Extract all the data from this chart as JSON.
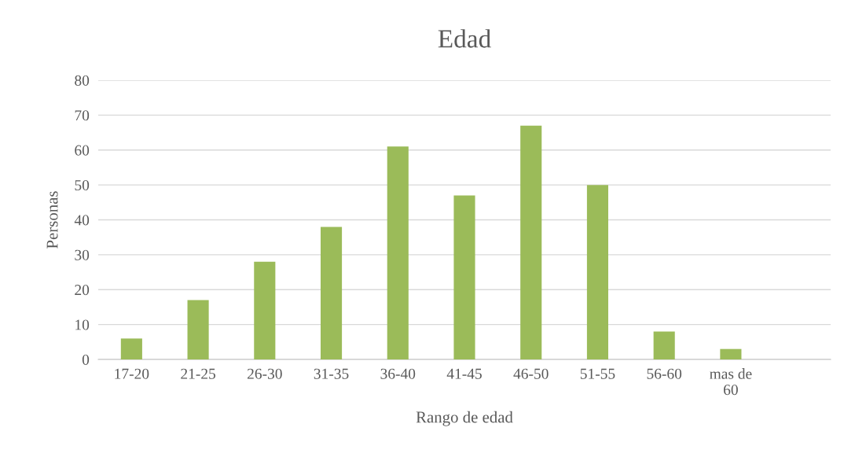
{
  "chart_data": {
    "type": "bar",
    "title": "Edad",
    "xlabel": "Rango de edad",
    "ylabel": "Personas",
    "categories": [
      "17-20",
      "21-25",
      "26-30",
      "31-35",
      "36-40",
      "41-45",
      "46-50",
      "51-55",
      "56-60",
      "mas de\n60",
      null
    ],
    "values": [
      6,
      17,
      28,
      38,
      61,
      47,
      67,
      50,
      8,
      3,
      null
    ],
    "color": "#9bbb59",
    "ylim": [
      0,
      80
    ],
    "yticks": [
      0,
      10,
      20,
      30,
      40,
      50,
      60,
      70,
      80
    ],
    "grid": "y",
    "legend": false
  }
}
